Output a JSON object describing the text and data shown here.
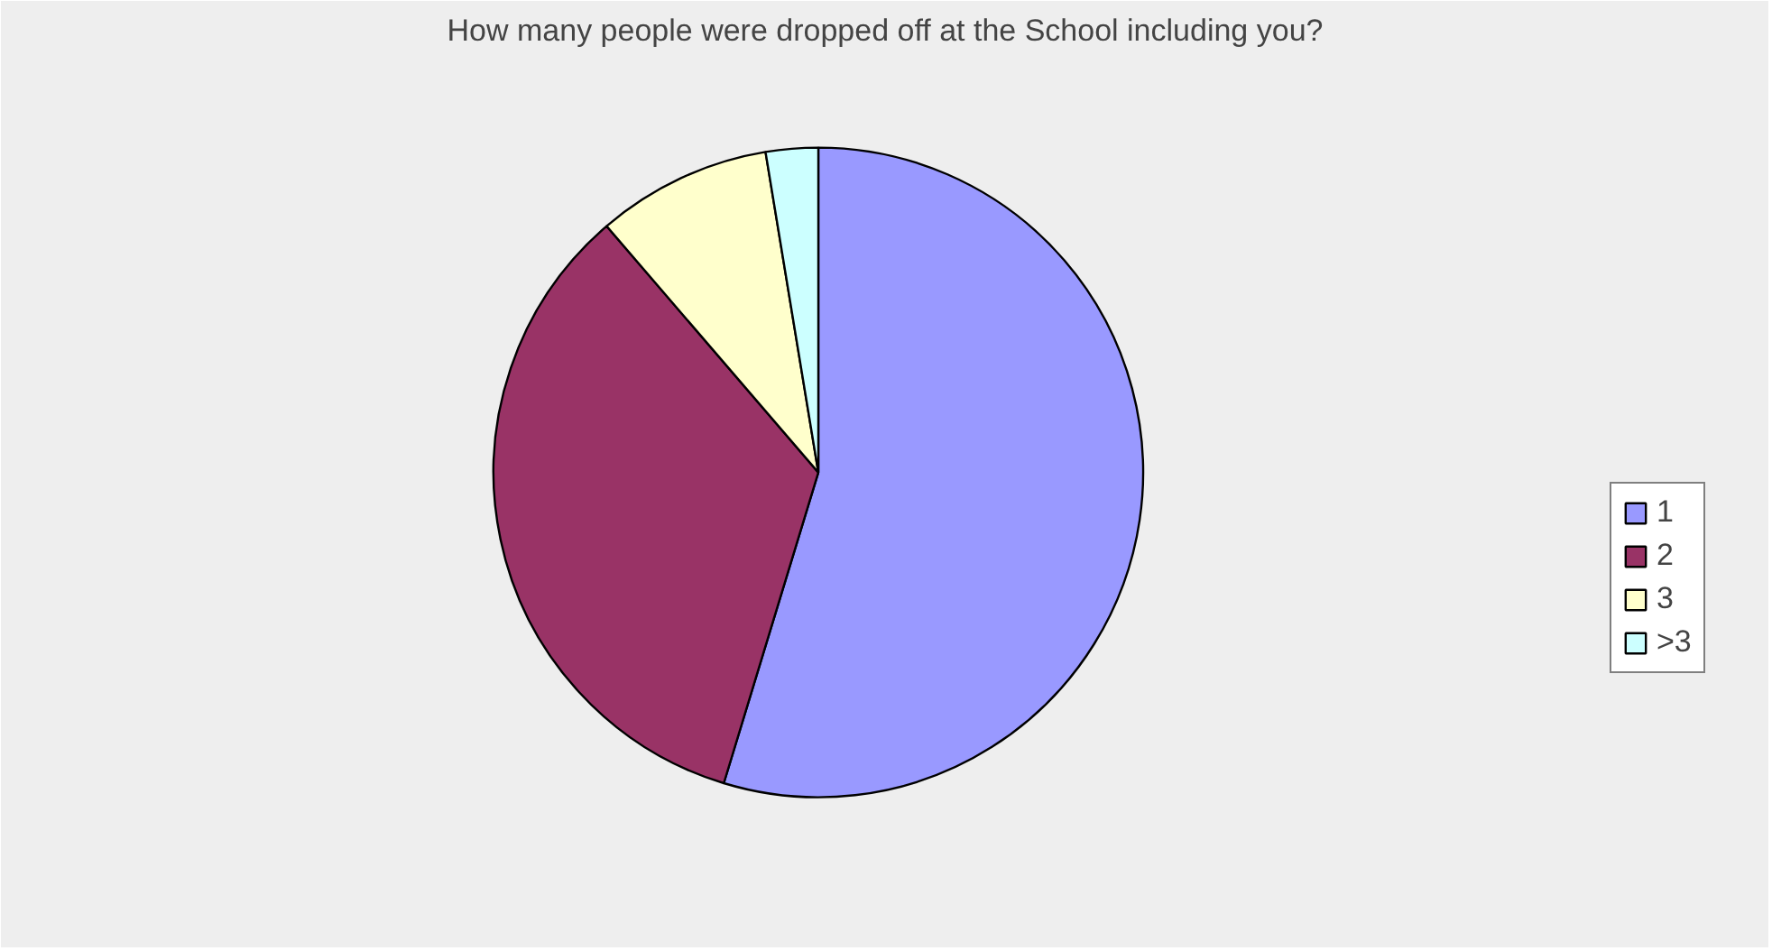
{
  "chart_data": {
    "type": "pie",
    "title": "How many people were dropped off at the School including you?",
    "categories": [
      "1",
      "2",
      "3",
      ">3"
    ],
    "values": [
      54.7,
      34.0,
      8.7,
      2.6
    ],
    "colors": [
      "#9999ff",
      "#993366",
      "#ffffcc",
      "#ccffff"
    ],
    "legend": "right"
  }
}
